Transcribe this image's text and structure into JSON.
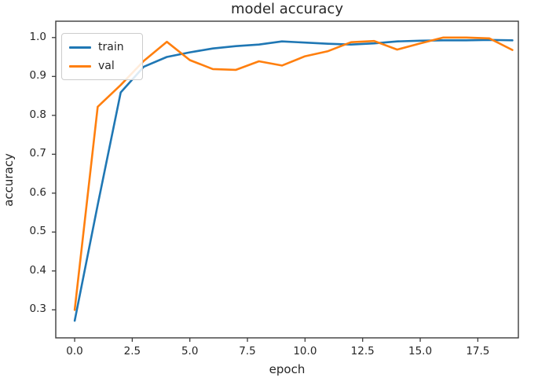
{
  "figure": {
    "title": "model accuracy",
    "xlabel": "epoch",
    "ylabel": "accuracy"
  },
  "chart_data": {
    "type": "line",
    "title": "model accuracy",
    "xlabel": "epoch",
    "ylabel": "accuracy",
    "x": [
      0,
      1,
      2,
      3,
      4,
      5,
      6,
      7,
      8,
      9,
      10,
      11,
      12,
      13,
      14,
      15,
      16,
      17,
      18,
      19
    ],
    "series": [
      {
        "name": "train",
        "color": "#1f77b4",
        "values": [
          0.272,
          0.57,
          0.859,
          0.925,
          0.95,
          0.962,
          0.972,
          0.978,
          0.982,
          0.99,
          0.987,
          0.984,
          0.982,
          0.985,
          0.99,
          0.992,
          0.993,
          0.993,
          0.994,
          0.993
        ]
      },
      {
        "name": "val",
        "color": "#ff7f0e",
        "values": [
          0.3,
          0.822,
          0.878,
          0.94,
          0.989,
          0.942,
          0.919,
          0.917,
          0.939,
          0.928,
          0.952,
          0.965,
          0.988,
          0.991,
          0.969,
          0.985,
          1.0,
          1.0,
          0.998,
          0.968
        ]
      }
    ],
    "xticks": {
      "values": [
        0.0,
        2.5,
        5.0,
        7.5,
        10.0,
        12.5,
        15.0,
        17.5
      ],
      "labels": [
        "0.0",
        "2.5",
        "5.0",
        "7.5",
        "10.0",
        "12.5",
        "15.0",
        "17.5"
      ]
    },
    "yticks": {
      "values": [
        0.3,
        0.4,
        0.5,
        0.6,
        0.7,
        0.8,
        0.9,
        1.0
      ],
      "labels": [
        "0.3",
        "0.4",
        "0.5",
        "0.6",
        "0.7",
        "0.8",
        "0.9",
        "1.0"
      ]
    },
    "xlim": [
      -0.82,
      19.26
    ],
    "ylim": [
      0.228,
      1.042
    ],
    "grid": false,
    "legend_position": "upper left",
    "colors": {
      "axes": "#3c3c3c",
      "text": "#262626"
    }
  }
}
